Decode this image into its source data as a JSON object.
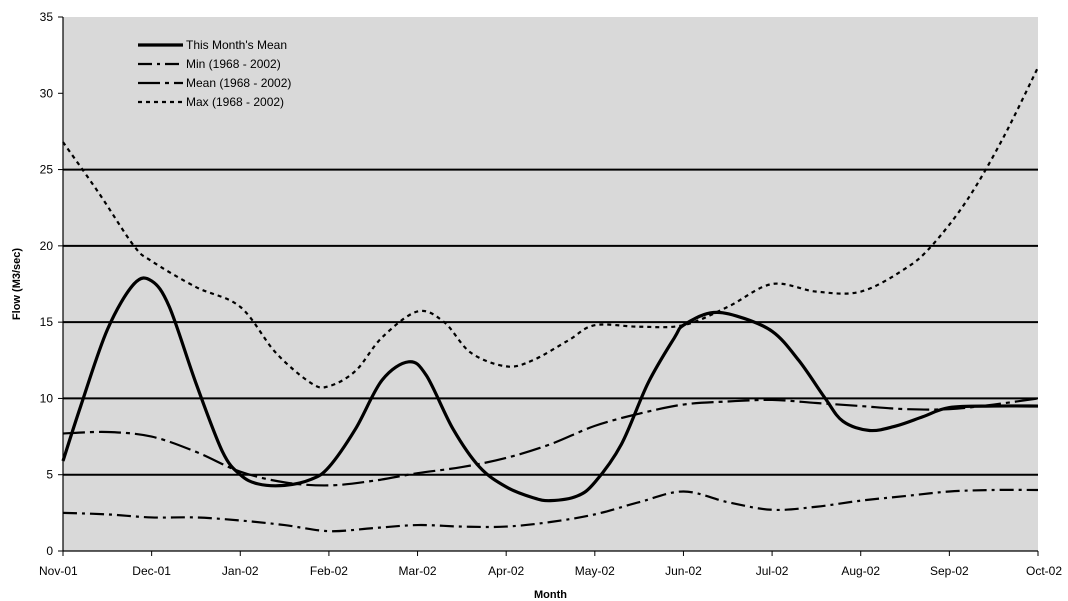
{
  "chart_data": {
    "type": "line",
    "title": "",
    "xlabel": "Month",
    "ylabel": "Flow (M3/sec)",
    "ylim": [
      0,
      35
    ],
    "yticks": [
      0,
      5,
      10,
      15,
      20,
      25,
      30,
      35
    ],
    "categories": [
      "Nov-01",
      "Dec-01",
      "Jan-02",
      "Feb-02",
      "Mar-02",
      "Apr-02",
      "May-02",
      "Jun-02",
      "Jul-02",
      "Aug-02",
      "Sep-02",
      "Oct-02"
    ],
    "gridlines": [
      5,
      10,
      15,
      20,
      25
    ],
    "legend_position": "top-left",
    "colors": {
      "plot_bg": "#d9d9d9",
      "line": "#000000",
      "grid": "#000000"
    },
    "series": [
      {
        "name": "This Month's Mean",
        "dash": "solid",
        "points": [
          [
            0,
            5.9
          ],
          [
            0.2,
            9.5
          ],
          [
            0.5,
            14.5
          ],
          [
            0.8,
            17.5
          ],
          [
            1.0,
            17.7
          ],
          [
            1.2,
            16.0
          ],
          [
            1.5,
            11.0
          ],
          [
            1.8,
            6.5
          ],
          [
            2.0,
            5.0
          ],
          [
            2.2,
            4.4
          ],
          [
            2.5,
            4.3
          ],
          [
            2.8,
            4.7
          ],
          [
            3.0,
            5.5
          ],
          [
            3.3,
            8.0
          ],
          [
            3.6,
            11.2
          ],
          [
            3.9,
            12.4
          ],
          [
            4.1,
            11.5
          ],
          [
            4.4,
            8.0
          ],
          [
            4.7,
            5.5
          ],
          [
            5.0,
            4.2
          ],
          [
            5.3,
            3.5
          ],
          [
            5.5,
            3.3
          ],
          [
            5.8,
            3.6
          ],
          [
            6.0,
            4.5
          ],
          [
            6.3,
            7.0
          ],
          [
            6.6,
            11.0
          ],
          [
            6.9,
            14.0
          ],
          [
            7.0,
            14.8
          ],
          [
            7.3,
            15.6
          ],
          [
            7.6,
            15.4
          ],
          [
            8.0,
            14.4
          ],
          [
            8.3,
            12.5
          ],
          [
            8.6,
            10.0
          ],
          [
            8.8,
            8.5
          ],
          [
            9.1,
            7.9
          ],
          [
            9.4,
            8.2
          ],
          [
            9.7,
            8.8
          ],
          [
            10.0,
            9.4
          ],
          [
            10.5,
            9.5
          ],
          [
            11.0,
            9.5
          ]
        ]
      },
      {
        "name": "Min (1968 - 2002)",
        "dash": "dashdot",
        "points": [
          [
            0,
            2.5
          ],
          [
            0.5,
            2.4
          ],
          [
            1.0,
            2.2
          ],
          [
            1.5,
            2.2
          ],
          [
            2.0,
            2.0
          ],
          [
            2.5,
            1.7
          ],
          [
            3.0,
            1.3
          ],
          [
            3.5,
            1.5
          ],
          [
            4.0,
            1.7
          ],
          [
            4.5,
            1.6
          ],
          [
            5.0,
            1.6
          ],
          [
            5.5,
            1.9
          ],
          [
            6.0,
            2.4
          ],
          [
            6.5,
            3.2
          ],
          [
            7.0,
            3.9
          ],
          [
            7.5,
            3.2
          ],
          [
            8.0,
            2.7
          ],
          [
            8.5,
            2.9
          ],
          [
            9.0,
            3.3
          ],
          [
            9.5,
            3.6
          ],
          [
            10.0,
            3.9
          ],
          [
            10.5,
            4.0
          ],
          [
            11.0,
            4.0
          ]
        ]
      },
      {
        "name": "Mean (1968 - 2002)",
        "dash": "longdashdot",
        "points": [
          [
            0,
            7.7
          ],
          [
            0.5,
            7.8
          ],
          [
            1.0,
            7.5
          ],
          [
            1.5,
            6.5
          ],
          [
            2.0,
            5.2
          ],
          [
            2.5,
            4.5
          ],
          [
            3.0,
            4.3
          ],
          [
            3.5,
            4.6
          ],
          [
            4.0,
            5.1
          ],
          [
            4.5,
            5.5
          ],
          [
            5.0,
            6.1
          ],
          [
            5.5,
            7.0
          ],
          [
            6.0,
            8.2
          ],
          [
            6.5,
            9.0
          ],
          [
            7.0,
            9.6
          ],
          [
            7.5,
            9.8
          ],
          [
            8.0,
            9.9
          ],
          [
            8.5,
            9.7
          ],
          [
            9.0,
            9.5
          ],
          [
            9.5,
            9.3
          ],
          [
            10.0,
            9.3
          ],
          [
            10.5,
            9.6
          ],
          [
            11.0,
            10.0
          ]
        ]
      },
      {
        "name": "Max (1968 - 2002)",
        "dash": "dotted",
        "points": [
          [
            0,
            26.8
          ],
          [
            0.4,
            23.5
          ],
          [
            0.8,
            20.0
          ],
          [
            1.0,
            19.0
          ],
          [
            1.5,
            17.3
          ],
          [
            2.0,
            16.0
          ],
          [
            2.4,
            13.0
          ],
          [
            2.8,
            11.0
          ],
          [
            3.0,
            10.8
          ],
          [
            3.3,
            11.8
          ],
          [
            3.6,
            14.0
          ],
          [
            4.0,
            15.7
          ],
          [
            4.3,
            15.0
          ],
          [
            4.6,
            13.0
          ],
          [
            5.0,
            12.1
          ],
          [
            5.3,
            12.5
          ],
          [
            5.7,
            13.8
          ],
          [
            6.0,
            14.8
          ],
          [
            6.5,
            14.7
          ],
          [
            7.0,
            14.8
          ],
          [
            7.5,
            16.0
          ],
          [
            8.0,
            17.5
          ],
          [
            8.5,
            17.0
          ],
          [
            9.0,
            17.0
          ],
          [
            9.5,
            18.5
          ],
          [
            9.8,
            20.0
          ],
          [
            10.2,
            23.0
          ],
          [
            10.6,
            27.0
          ],
          [
            11.0,
            31.7
          ]
        ]
      }
    ]
  }
}
